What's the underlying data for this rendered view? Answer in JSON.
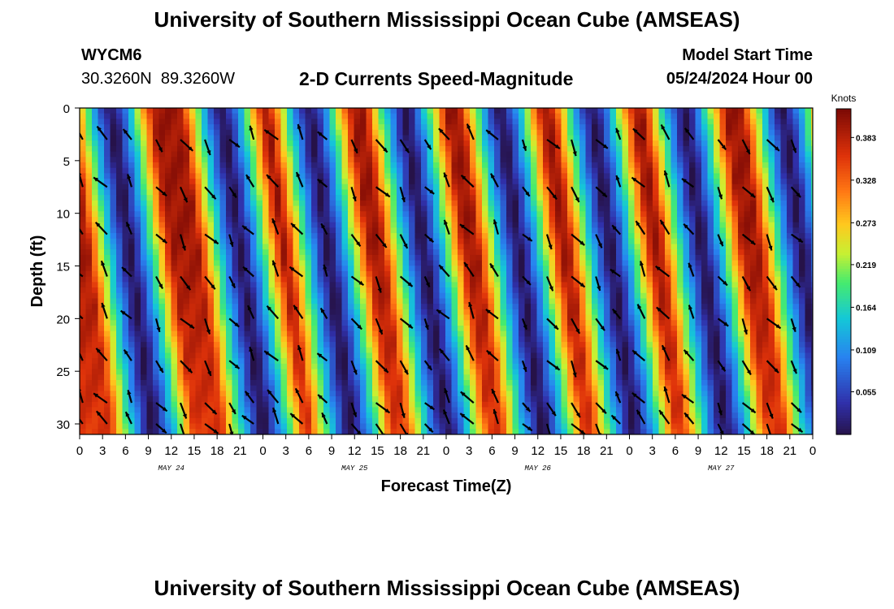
{
  "title": "University of Southern Mississippi Ocean Cube (AMSEAS)",
  "title_bottom": "University of Southern Mississippi Ocean Cube (AMSEAS)",
  "station": {
    "id": "WYCM6",
    "lat": "30.3260N",
    "lon": "89.3260W"
  },
  "model": {
    "label": "Model Start Time",
    "value": "05/24/2024 Hour 00"
  },
  "chart_data": {
    "type": "heatmap",
    "title": "2-D Currents Speed-Magnitude",
    "xlabel": "Forecast Time(Z)",
    "ylabel": "Depth (ft)",
    "colorbar_label": "Knots",
    "colorbar_ticks": [
      "0.383",
      "0.328",
      "0.273",
      "0.219",
      "0.164",
      "0.109",
      "0.055"
    ],
    "colorbar_values": [
      0.383,
      0.328,
      0.273,
      0.219,
      0.164,
      0.109,
      0.055
    ],
    "colorbar_range": [
      0.0,
      0.42
    ],
    "x_range_hours": [
      0,
      96
    ],
    "x_ticks": [
      "0",
      "3",
      "6",
      "9",
      "12",
      "15",
      "18",
      "21",
      "0",
      "3",
      "6",
      "9",
      "12",
      "15",
      "18",
      "21",
      "0",
      "3",
      "6",
      "9",
      "12",
      "15",
      "18",
      "21",
      "0",
      "3",
      "6",
      "9",
      "12",
      "15",
      "18",
      "21",
      "0"
    ],
    "day_labels": [
      "MAY 24",
      "MAY 25",
      "MAY 26",
      "MAY 27"
    ],
    "y_range_ft": [
      0,
      31
    ],
    "y_ticks": [
      "0",
      "5",
      "10",
      "15",
      "20",
      "25",
      "30"
    ],
    "y_tick_values": [
      0,
      5,
      10,
      15,
      20,
      25,
      30
    ],
    "speed_maxima_hours": [
      1.5,
      13.5,
      25.5,
      38,
      50,
      62,
      74,
      86.5
    ],
    "speed_minima_hours": [
      5,
      19.5,
      31,
      43.5,
      56,
      68,
      80,
      93
    ],
    "vector_grid_hours_step": 3.2,
    "vector_grid_depths_ft": [
      3,
      7.5,
      12,
      16,
      20,
      24,
      28,
      30
    ]
  }
}
